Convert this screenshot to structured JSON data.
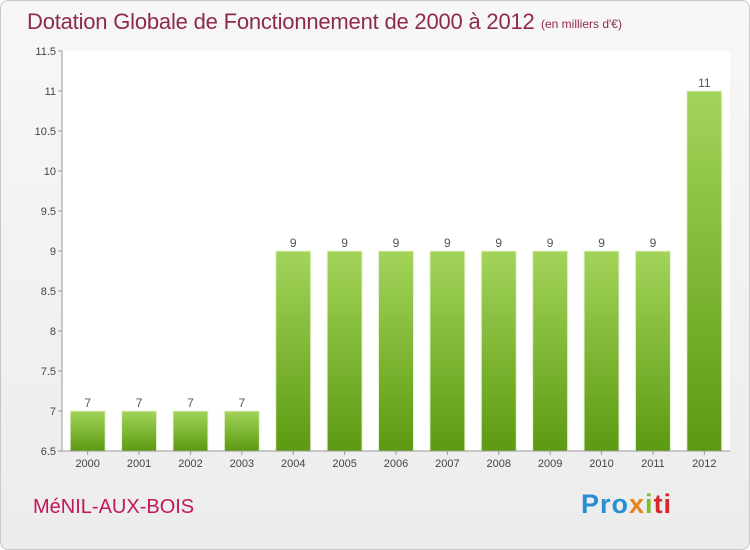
{
  "chart_data": {
    "type": "bar",
    "title": "Dotation Globale de Fonctionnement de 2000 à 2012",
    "subtitle": "(en milliers d'€)",
    "categories": [
      "2000",
      "2001",
      "2002",
      "2003",
      "2004",
      "2005",
      "2006",
      "2007",
      "2008",
      "2009",
      "2010",
      "2011",
      "2012"
    ],
    "values": [
      7,
      7,
      7,
      7,
      9,
      9,
      9,
      9,
      9,
      9,
      9,
      9,
      11
    ],
    "data_labels": [
      "7",
      "7",
      "7",
      "7",
      "9",
      "9",
      "9",
      "9",
      "9",
      "9",
      "9",
      "9",
      "11"
    ],
    "xlabel": "",
    "ylabel": "",
    "ylim": [
      6.5,
      11.5
    ],
    "yticks": [
      6.5,
      7,
      7.5,
      8,
      8.5,
      9,
      9.5,
      10,
      10.5,
      11,
      11.5
    ],
    "ytick_labels": [
      "6.5",
      "7",
      "7.5",
      "8",
      "8.5",
      "9",
      "9.5",
      "10",
      "10.5",
      "11",
      "11.5"
    ],
    "grid": false,
    "bar_color_top": "#a3d45a",
    "bar_color_bottom": "#5c9a12"
  },
  "footer": {
    "commune": "MéNIL-AUX-BOIS",
    "logo": {
      "part1": "Pro",
      "part2": "x",
      "part3": "i",
      "part4": "ti"
    }
  }
}
